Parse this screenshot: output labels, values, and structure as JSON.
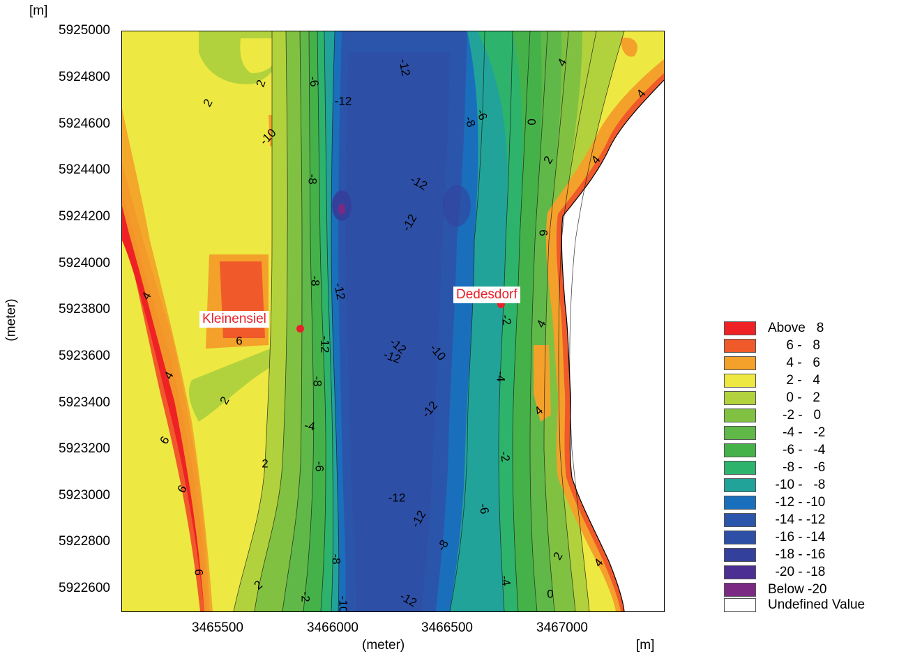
{
  "axes": {
    "y_unit": "[m]",
    "x_unit": "[m]",
    "x_title": "(meter)",
    "y_title": "(meter)",
    "y_ticks": [
      "5925000",
      "5924800",
      "5924600",
      "5924400",
      "5924200",
      "5924000",
      "5923800",
      "5923600",
      "5923400",
      "5923200",
      "5923000",
      "5922800",
      "5922600"
    ],
    "x_ticks": [
      "3465500",
      "3466000",
      "3466500",
      "3467000"
    ]
  },
  "places": [
    {
      "name": "Kleinensiel"
    },
    {
      "name": "Dedesdorf"
    }
  ],
  "contour_labels": [
    "-12",
    "-6",
    "-12",
    "2",
    "2",
    "-8",
    "-6",
    "0",
    "2",
    "4",
    "4",
    "-10",
    "-8",
    "4",
    "-12",
    "-12",
    "6",
    "-8",
    "-12",
    "4",
    "-12",
    "-10",
    "4",
    "-2",
    "-12",
    "-12",
    "6",
    "-8",
    "-4",
    "2",
    "4",
    "-12",
    "-4",
    "-6",
    "4",
    "2",
    "-2",
    "6",
    "6",
    "-12",
    "-8",
    "2",
    "-6",
    "-12",
    "-8",
    "6",
    "-10",
    "-12",
    "2",
    "-2",
    "-4",
    "4",
    "0"
  ],
  "legend": {
    "items": [
      {
        "label": "Above   8",
        "color": "#ee2125"
      },
      {
        "label": "     6 -   8",
        "color": "#f05a2a"
      },
      {
        "label": "     4 -   6",
        "color": "#f3a12a"
      },
      {
        "label": "     2 -   4",
        "color": "#ede842"
      },
      {
        "label": "     0 -   2",
        "color": "#b2d23d"
      },
      {
        "label": "    -2 -   0",
        "color": "#80c142"
      },
      {
        "label": "    -4 -   -2",
        "color": "#60b848"
      },
      {
        "label": "    -6 -   -4",
        "color": "#45b249"
      },
      {
        "label": "    -8 -   -6",
        "color": "#2db36c"
      },
      {
        "label": "  -10 -   -8",
        "color": "#22a39a"
      },
      {
        "label": "  -12 - -10",
        "color": "#1a6fbc"
      },
      {
        "label": "  -14 - -12",
        "color": "#2b55ab"
      },
      {
        "label": "  -16 - -14",
        "color": "#2d4fa6"
      },
      {
        "label": "  -18 - -16",
        "color": "#34419c"
      },
      {
        "label": "  -20 - -18",
        "color": "#4b2f92"
      },
      {
        "label": "Below -20",
        "color": "#7a2a82"
      },
      {
        "label": "Undefined Value",
        "color": "#ffffff"
      }
    ]
  }
}
